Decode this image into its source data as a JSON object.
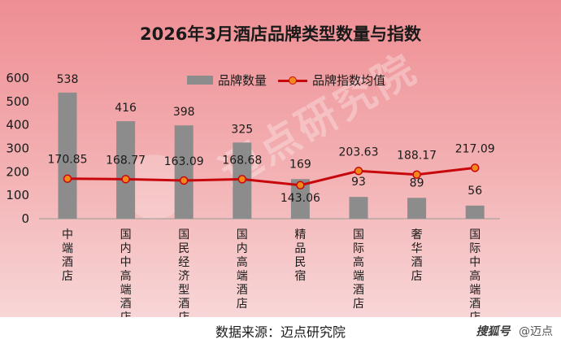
{
  "title": "2026年3月酒店品牌类型数量与指数",
  "source": "数据来源：迈点研究院",
  "watermark": "迈点研究院",
  "brand": {
    "prefix": "搜狐号",
    "name": "@迈点"
  },
  "colors": {
    "bar": "#8c8c8c",
    "line": "#c8070d",
    "marker": "#f0891a"
  },
  "chart_data": {
    "type": "bar",
    "title": "2026年3月酒店品牌类型数量与指数",
    "categories": [
      "中端酒店",
      "国内中高端酒店",
      "国民经济型酒店",
      "国内高端酒店",
      "精品民宿",
      "国际高端酒店",
      "奢华酒店",
      "国际中高端酒店"
    ],
    "series": [
      {
        "name": "品牌数量",
        "type": "bar",
        "values": [
          538,
          416,
          398,
          325,
          169,
          93,
          89,
          56
        ]
      },
      {
        "name": "品牌指数均值",
        "type": "line",
        "values": [
          170.85,
          168.77,
          163.09,
          168.68,
          143.06,
          203.63,
          188.17,
          217.09
        ]
      }
    ],
    "yticks": [
      0,
      100,
      200,
      300,
      400,
      500,
      600
    ],
    "ylim": [
      0,
      600
    ],
    "legend": "top-center",
    "grid": false
  }
}
